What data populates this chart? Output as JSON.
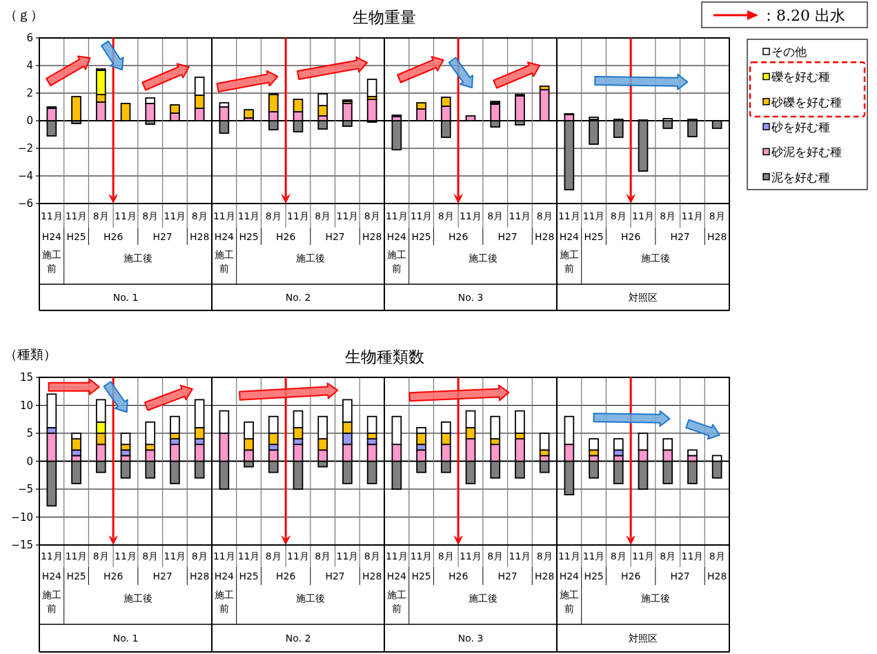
{
  "chart_data": [
    {
      "type": "bar",
      "stacked": true,
      "title": "生物重量",
      "ylabel": "（ｇ）",
      "legend": "right",
      "grid": true,
      "ylim": [
        -6,
        6
      ],
      "yticks": [
        -6,
        -4,
        -2,
        0,
        2,
        4,
        6
      ],
      "categories": [
        "11月",
        "11月",
        "8月",
        "11月",
        "8月",
        "11月",
        "8月",
        "11月",
        "11月",
        "8月",
        "11月",
        "8月",
        "11月",
        "8月",
        "11月",
        "11月",
        "8月",
        "11月",
        "8月",
        "11月",
        "8月",
        "11月",
        "11月",
        "8月",
        "11月",
        "8月",
        "11月",
        "8月"
      ],
      "series": [
        {
          "name": "泥を好む種",
          "color": "#808080",
          "values": [
            -1.1,
            -0.2,
            null,
            null,
            -0.25,
            null,
            null,
            -0.9,
            null,
            -0.65,
            -0.8,
            -0.6,
            -0.4,
            -0.1,
            -2.1,
            null,
            -1.2,
            null,
            -0.45,
            -0.3,
            null,
            -5.0,
            -1.7,
            -1.2,
            -3.65,
            -0.55,
            -1.15,
            -0.55
          ]
        },
        {
          "name": "砂泥を好む種",
          "color": "#ff99cc",
          "values": [
            0.9,
            null,
            1.35,
            null,
            1.25,
            0.55,
            0.9,
            1.0,
            0.2,
            0.65,
            0.65,
            0.35,
            1.25,
            1.55,
            0.3,
            0.85,
            1.05,
            0.35,
            1.2,
            1.8,
            2.25,
            0.45,
            null,
            null,
            null,
            null,
            null,
            null
          ]
        },
        {
          "name": "砂を好む種",
          "color": "#9999ff",
          "values": [
            null,
            null,
            null,
            null,
            null,
            null,
            null,
            null,
            null,
            null,
            null,
            null,
            null,
            null,
            null,
            null,
            null,
            null,
            null,
            null,
            null,
            null,
            null,
            null,
            null,
            null,
            null,
            null
          ]
        },
        {
          "name": "砂礫を好む種",
          "color": "#ffc000",
          "values": [
            null,
            1.75,
            0.55,
            1.25,
            null,
            0.6,
            0.95,
            null,
            0.6,
            1.25,
            0.9,
            0.75,
            0.15,
            0.2,
            null,
            0.45,
            0.65,
            null,
            0.1,
            0.1,
            0.25,
            null,
            0.1,
            null,
            null,
            null,
            null,
            null
          ]
        },
        {
          "name": "礫を好む種",
          "color": "#ffff00",
          "values": [
            null,
            null,
            1.75,
            null,
            null,
            null,
            null,
            null,
            null,
            null,
            null,
            null,
            null,
            null,
            null,
            null,
            null,
            null,
            null,
            null,
            null,
            null,
            null,
            null,
            null,
            null,
            null,
            null
          ]
        },
        {
          "name": "その他",
          "color": "#ffffff",
          "values": [
            0.1,
            null,
            0.1,
            null,
            0.4,
            null,
            1.3,
            0.3,
            null,
            0.05,
            null,
            0.85,
            0.1,
            1.25,
            0.1,
            null,
            null,
            null,
            0.1,
            null,
            null,
            0.05,
            0.15,
            0.1,
            0.05,
            0.15,
            0.1,
            null
          ]
        }
      ],
      "annotations": [
        "H24",
        "H25",
        "H26",
        "H27",
        "H28",
        "施工前",
        "施工後",
        "No. 1",
        "H24",
        "H25",
        "H26",
        "H27",
        "H28",
        "施工前",
        "施工後",
        "No. 2",
        "H24",
        "H25",
        "H26",
        "H27",
        "H28",
        "施工前",
        "施工後",
        "No. 3",
        "H24",
        "H25",
        "H26",
        "H27",
        "H28",
        "施工前",
        "施工後",
        "対照区",
        "：8.20 出水"
      ]
    },
    {
      "type": "bar",
      "stacked": true,
      "title": "生物種類数",
      "ylabel": "（種類）",
      "grid": true,
      "ylim": [
        -15,
        15
      ],
      "yticks": [
        -15,
        -10,
        -5,
        0,
        5,
        10,
        15
      ],
      "categories": [
        "11月",
        "11月",
        "8月",
        "11月",
        "8月",
        "11月",
        "8月",
        "11月",
        "11月",
        "8月",
        "11月",
        "8月",
        "11月",
        "8月",
        "11月",
        "11月",
        "8月",
        "11月",
        "8月",
        "11月",
        "8月",
        "11月",
        "11月",
        "8月",
        "11月",
        "8月",
        "11月",
        "8月"
      ],
      "series": [
        {
          "color": "#808080",
          "values": [
            -8,
            -4,
            -2,
            -3,
            -3,
            -4,
            -3,
            -5,
            -1,
            -2,
            -5,
            -1,
            -4,
            -4,
            -5,
            -2,
            -2,
            -4,
            -3,
            -3,
            -2,
            -6,
            -3,
            -4,
            -5,
            -4,
            -4,
            -3
          ]
        },
        {
          "color": "#ff99cc",
          "values": [
            5,
            1,
            3,
            1,
            2,
            3,
            3,
            5,
            2,
            2,
            3,
            2,
            3,
            3,
            3,
            2,
            3,
            4,
            3,
            4,
            1,
            3,
            1,
            1,
            2,
            2,
            1,
            null
          ]
        },
        {
          "color": "#9999ff",
          "values": [
            1,
            1,
            null,
            1,
            null,
            1,
            1,
            null,
            null,
            1,
            1,
            null,
            2,
            1,
            null,
            1,
            null,
            null,
            null,
            null,
            null,
            null,
            null,
            1,
            null,
            null,
            null,
            null
          ]
        },
        {
          "color": "#ffc000",
          "values": [
            null,
            2,
            2,
            1,
            1,
            1,
            2,
            null,
            2,
            2,
            2,
            2,
            2,
            1,
            null,
            2,
            2,
            2,
            1,
            1,
            1,
            null,
            1,
            null,
            null,
            null,
            null,
            null
          ]
        },
        {
          "color": "#ffff00",
          "values": [
            null,
            null,
            2,
            null,
            null,
            null,
            null,
            null,
            null,
            null,
            null,
            null,
            null,
            null,
            null,
            null,
            null,
            null,
            null,
            null,
            null,
            null,
            null,
            null,
            null,
            null,
            null,
            null
          ]
        },
        {
          "color": "#ffffff",
          "values": [
            6,
            1,
            4,
            2,
            4,
            3,
            5,
            4,
            3,
            3,
            3,
            4,
            4,
            3,
            5,
            1,
            2,
            3,
            4,
            4,
            3,
            5,
            2,
            2,
            3,
            2,
            1,
            1
          ]
        }
      ],
      "annotations": [
        "H24",
        "H25",
        "H26",
        "H27",
        "H28",
        "施工前",
        "施工後",
        "No. 1",
        "H24",
        "H25",
        "H26",
        "H27",
        "H28",
        "施工前",
        "施工後",
        "No. 2",
        "H24",
        "H25",
        "H26",
        "H27",
        "H28",
        "施工前",
        "施工後",
        "No. 3",
        "H24",
        "H25",
        "H26",
        "H27",
        "H28",
        "施工前",
        "施工後",
        "対照区"
      ]
    }
  ]
}
